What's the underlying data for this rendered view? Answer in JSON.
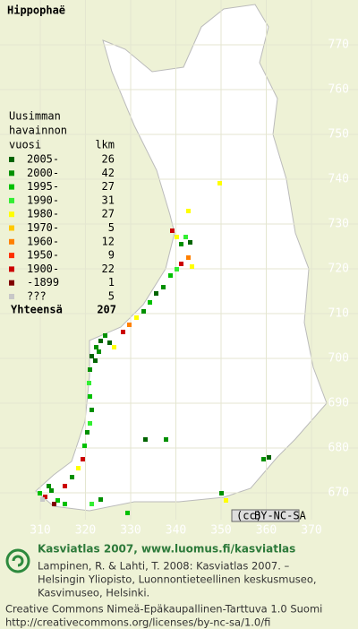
{
  "title": "Hippophaë",
  "legend": {
    "heading": [
      "Uusimman",
      "havainnon",
      "vuosi"
    ],
    "count_heading": "lkm",
    "rows": [
      {
        "label": "2005-",
        "count": 26,
        "color": "#006400"
      },
      {
        "label": "2000-",
        "count": 42,
        "color": "#009000"
      },
      {
        "label": "1995-",
        "count": 27,
        "color": "#00c000"
      },
      {
        "label": "1990-",
        "count": 31,
        "color": "#33ee33"
      },
      {
        "label": "1980-",
        "count": 27,
        "color": "#ffff00"
      },
      {
        "label": "1970-",
        "count": 5,
        "color": "#ffc800"
      },
      {
        "label": "1960-",
        "count": 12,
        "color": "#ff8000"
      },
      {
        "label": "1950-",
        "count": 9,
        "color": "#ff3000"
      },
      {
        "label": "1900-",
        "count": 22,
        "color": "#cc0000"
      },
      {
        "label": "-1899",
        "count": 1,
        "color": "#800000"
      },
      {
        "label": "???",
        "count": 5,
        "color": "#c8c8c8"
      }
    ],
    "total_label": "Yhteensä",
    "total": 207
  },
  "grid": {
    "x_labels": [
      310,
      320,
      330,
      340,
      350,
      360,
      370
    ],
    "y_labels": [
      670,
      680,
      690,
      700,
      710,
      720,
      730,
      740,
      750,
      760,
      770
    ]
  },
  "cc_badge": "BY-NC-SA",
  "footer": {
    "heading": "Kasviatlas 2007, www.luomus.fi/kasviatlas",
    "citation": [
      "Lampinen, R. & Lahti, T. 2008: Kasviatlas 2007. –",
      "Helsingin Yliopisto, Luonnontieteellinen keskusmuseo,",
      "Kasvimuseo, Helsinki."
    ],
    "license": [
      "Creative Commons Nimeä-Epäkaupallinen-Tarttuva 1.0 Suomi",
      "http://creativecommons.org/licenses/by-nc-sa/1.0/fi"
    ]
  }
}
